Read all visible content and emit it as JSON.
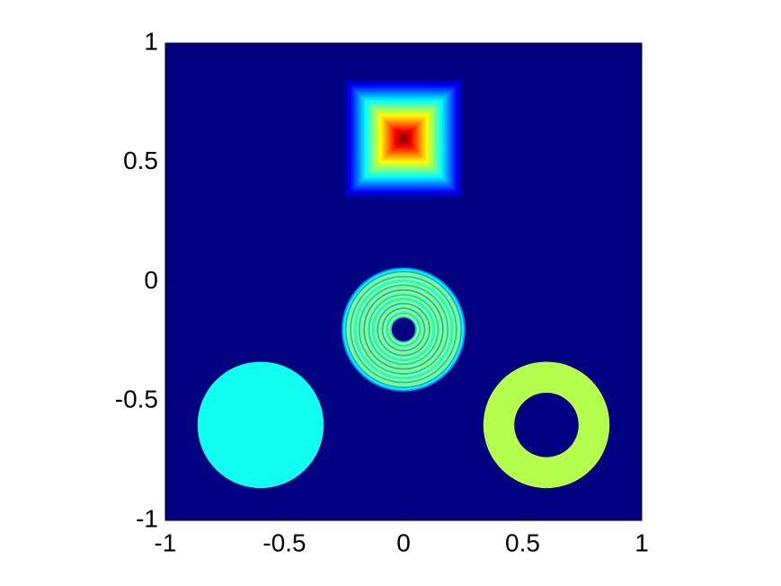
{
  "chart_data": {
    "type": "image",
    "xlim": [
      -1,
      1
    ],
    "ylim": [
      -1,
      1
    ],
    "xticks": [
      -1,
      -0.5,
      0,
      0.5,
      1
    ],
    "yticks": [
      -1,
      -0.5,
      0,
      0.5,
      1
    ],
    "colormap": "jet",
    "clim": [
      0,
      1
    ],
    "background_value": 0,
    "shapes": [
      {
        "kind": "pyramid",
        "x": 0,
        "y": 0.6,
        "half": 0.25,
        "value": 1
      },
      {
        "kind": "fuzzy-annulus",
        "x": 0,
        "y": -0.2,
        "r": 0.26,
        "r_inner": 0.05,
        "value": 0.45
      },
      {
        "kind": "disc",
        "x": -0.6,
        "y": -0.6,
        "r": 0.265,
        "value": 0.39
      },
      {
        "kind": "ring",
        "x": 0.6,
        "y": -0.6,
        "r": 0.265,
        "r_inner": 0.135,
        "value": 0.55
      }
    ]
  }
}
